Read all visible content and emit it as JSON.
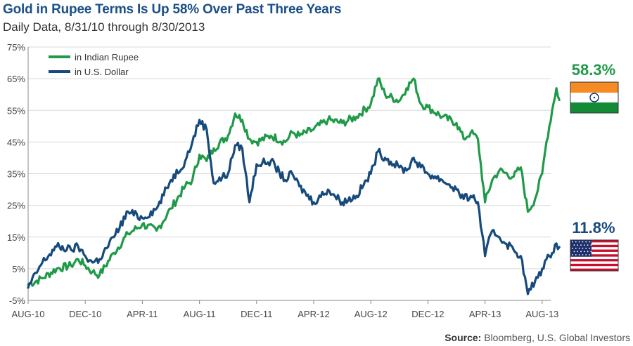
{
  "title": "Gold in Rupee Terms Is Up 58% Over Past Three Years",
  "subtitle": "Daily Data, 8/31/10 through 8/30/2013",
  "source": {
    "label": "Source:",
    "text": "Bloomberg, U.S. Global Investors"
  },
  "colors": {
    "rupee": "#1f9a48",
    "dollar": "#174a7c",
    "grid": "#d9d9d9",
    "axis": "#888888"
  },
  "chart_data": {
    "type": "line",
    "title": "Gold in Rupee Terms Is Up 58% Over Past Three Years",
    "xlabel": "",
    "ylabel": "",
    "ylim": [
      -5,
      75
    ],
    "y_ticks": [
      "-5%",
      "5%",
      "15%",
      "25%",
      "35%",
      "45%",
      "55%",
      "65%",
      "75%"
    ],
    "x_ticks": [
      "AUG-10",
      "DEC-10",
      "APR-11",
      "AUG-11",
      "DEC-11",
      "APR-12",
      "AUG-12",
      "DEC-12",
      "APR-13",
      "AUG-13"
    ],
    "x_months": [
      0,
      4,
      8,
      12,
      16,
      20,
      24,
      28,
      32,
      36
    ],
    "legend_position": "top-left",
    "series": [
      {
        "name": "in Indian Rupee",
        "color": "#1f9a48",
        "end_label": "58.3%",
        "points": [
          [
            0,
            0
          ],
          [
            1,
            2
          ],
          [
            2,
            5
          ],
          [
            3,
            6
          ],
          [
            3.5,
            8
          ],
          [
            4,
            6
          ],
          [
            4.5,
            4
          ],
          [
            5,
            3
          ],
          [
            6,
            10
          ],
          [
            7,
            16
          ],
          [
            8,
            19
          ],
          [
            9,
            17
          ],
          [
            10,
            24
          ],
          [
            11,
            31
          ],
          [
            11.5,
            33
          ],
          [
            12,
            41
          ],
          [
            12.5,
            39
          ],
          [
            13,
            43
          ],
          [
            14,
            47
          ],
          [
            14.5,
            54
          ],
          [
            15,
            52
          ],
          [
            15.5,
            46
          ],
          [
            16,
            45
          ],
          [
            17,
            47
          ],
          [
            18,
            45
          ],
          [
            18.5,
            48
          ],
          [
            19,
            47
          ],
          [
            20,
            49
          ],
          [
            21,
            52
          ],
          [
            22,
            51
          ],
          [
            23,
            53
          ],
          [
            24,
            57
          ],
          [
            24.5,
            65
          ],
          [
            25,
            60
          ],
          [
            26,
            58
          ],
          [
            26.5,
            62
          ],
          [
            27,
            65
          ],
          [
            27.5,
            57
          ],
          [
            28,
            56
          ],
          [
            29,
            53
          ],
          [
            30,
            51
          ],
          [
            30.5,
            46
          ],
          [
            31,
            48
          ],
          [
            31.5,
            46
          ],
          [
            32,
            26
          ],
          [
            32.5,
            33
          ],
          [
            33,
            36
          ],
          [
            34,
            34
          ],
          [
            34.5,
            37
          ],
          [
            35,
            23
          ],
          [
            35.5,
            27
          ],
          [
            36,
            35
          ],
          [
            36.3,
            45
          ],
          [
            36.7,
            55
          ],
          [
            37,
            62
          ],
          [
            37.2,
            58.3
          ]
        ]
      },
      {
        "name": "in U.S. Dollar",
        "color": "#174a7c",
        "end_label": "11.8%",
        "points": [
          [
            0,
            -1
          ],
          [
            1,
            7
          ],
          [
            2,
            12
          ],
          [
            3,
            11
          ],
          [
            3.5,
            12
          ],
          [
            4,
            9
          ],
          [
            4.5,
            7
          ],
          [
            5,
            8
          ],
          [
            6,
            15
          ],
          [
            7,
            23
          ],
          [
            8,
            21
          ],
          [
            9,
            24
          ],
          [
            10,
            33
          ],
          [
            11,
            39
          ],
          [
            11.5,
            45
          ],
          [
            12,
            52
          ],
          [
            12.5,
            49
          ],
          [
            13,
            32
          ],
          [
            14,
            35
          ],
          [
            14.5,
            44
          ],
          [
            15,
            43
          ],
          [
            15.5,
            26
          ],
          [
            16,
            38
          ],
          [
            17,
            39
          ],
          [
            18,
            33
          ],
          [
            18.5,
            35
          ],
          [
            19,
            31
          ],
          [
            20,
            26
          ],
          [
            21,
            30
          ],
          [
            22,
            26
          ],
          [
            23,
            28
          ],
          [
            24,
            35
          ],
          [
            24.5,
            42
          ],
          [
            25,
            40
          ],
          [
            26,
            37
          ],
          [
            26.5,
            36
          ],
          [
            27,
            40
          ],
          [
            27.5,
            37
          ],
          [
            28,
            35
          ],
          [
            29,
            33
          ],
          [
            30,
            30
          ],
          [
            30.5,
            27
          ],
          [
            31,
            28
          ],
          [
            31.5,
            26
          ],
          [
            32,
            9
          ],
          [
            32.5,
            17
          ],
          [
            33,
            15
          ],
          [
            34,
            11
          ],
          [
            34.5,
            9
          ],
          [
            35,
            -3
          ],
          [
            35.5,
            1
          ],
          [
            36,
            5
          ],
          [
            36.5,
            9
          ],
          [
            37,
            13
          ],
          [
            37.2,
            11.8
          ]
        ]
      }
    ]
  }
}
